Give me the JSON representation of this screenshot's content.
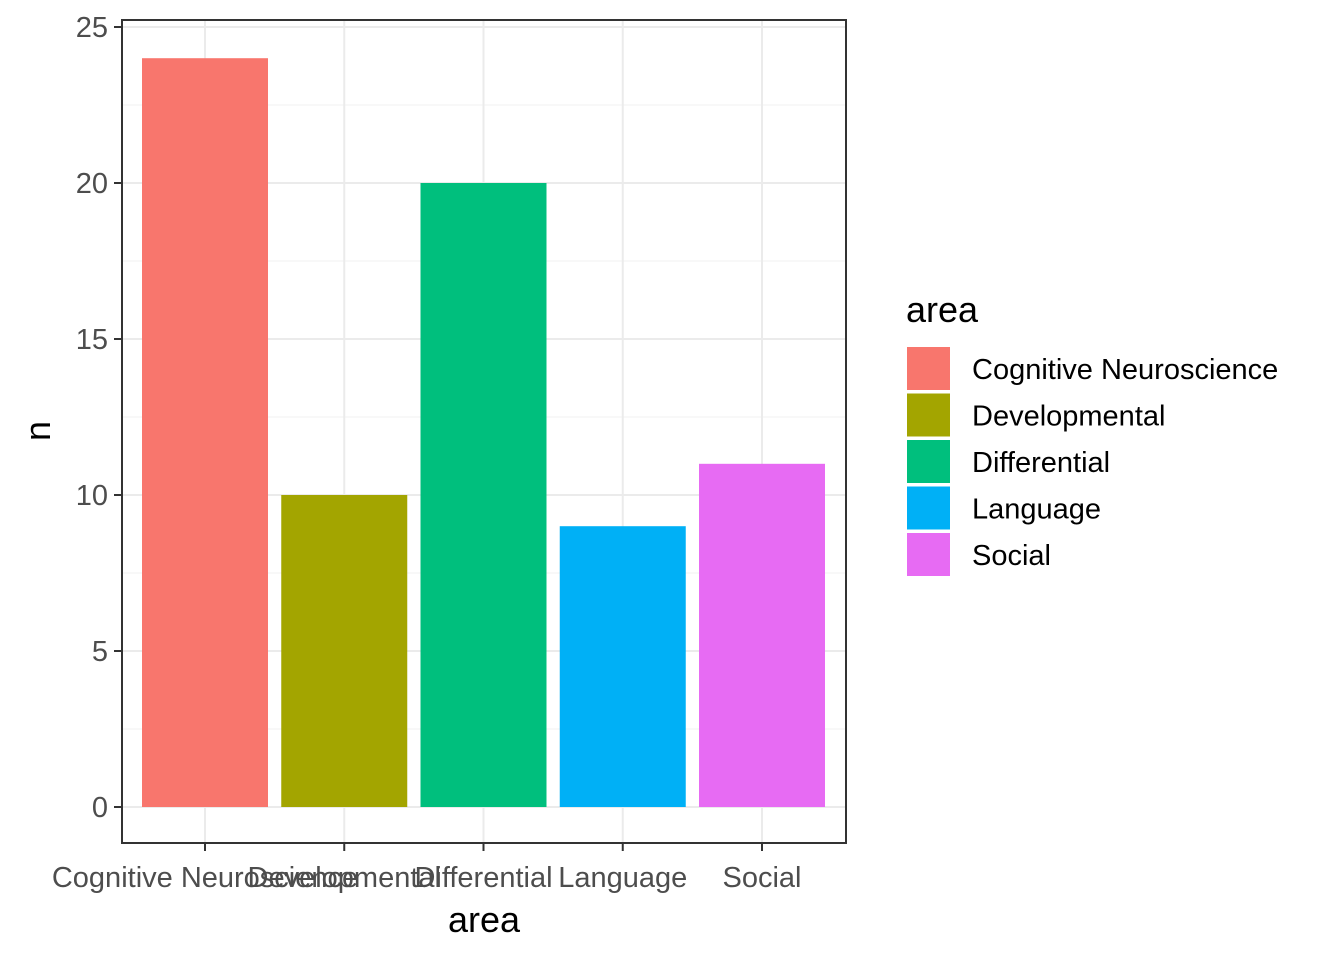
{
  "chart_data": {
    "type": "bar",
    "categories": [
      "Cognitive Neuroscience",
      "Developmental",
      "Differential",
      "Language",
      "Social"
    ],
    "values": [
      24,
      10,
      20,
      9,
      11
    ],
    "colors": [
      "#F8766D",
      "#A3A500",
      "#00BF7D",
      "#00B0F6",
      "#E76BF3"
    ],
    "xlabel": "area",
    "ylabel": "n",
    "ylim": [
      0,
      25
    ],
    "yticks": [
      0,
      5,
      10,
      15,
      20,
      25
    ],
    "grid": true,
    "legend": {
      "title": "area",
      "position": "right",
      "entries": [
        "Cognitive Neuroscience",
        "Developmental",
        "Differential",
        "Language",
        "Social"
      ]
    }
  }
}
